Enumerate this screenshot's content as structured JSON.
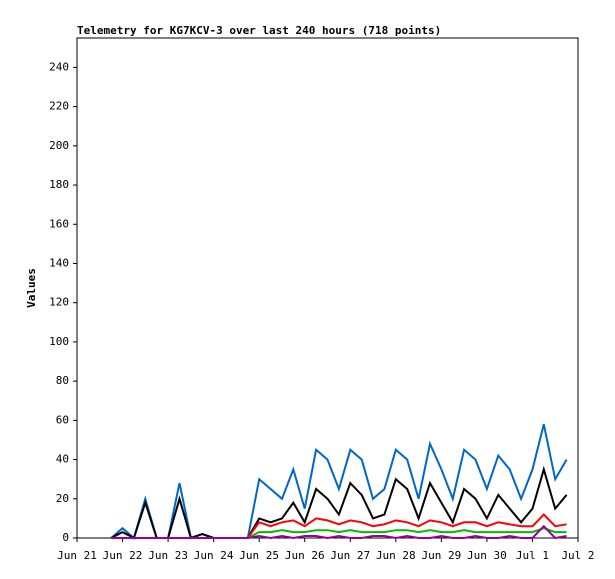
{
  "chart_data": {
    "type": "line",
    "title": "Telemetry for KG7KCV-3 over last 240 hours (718 points)",
    "y_label": "Values",
    "x": [
      0.75,
      1.0,
      1.25,
      1.5,
      1.75,
      2.0,
      2.25,
      2.5,
      2.75,
      3.0,
      3.25,
      3.5,
      3.75,
      4.0,
      4.25,
      4.5,
      4.75,
      5.0,
      5.25,
      5.5,
      5.75,
      6.0,
      6.25,
      6.5,
      6.75,
      7.0,
      7.25,
      7.5,
      7.75,
      8.0,
      8.25,
      8.5,
      8.75,
      9.0,
      9.25,
      9.5,
      9.75,
      10.0,
      10.25,
      10.5,
      10.75
    ],
    "series": [
      {
        "color": "#0066cc",
        "values": [
          0,
          5,
          0,
          20,
          0,
          0,
          28,
          0,
          2,
          0,
          0,
          0,
          0,
          30,
          25,
          20,
          35,
          15,
          45,
          40,
          25,
          45,
          40,
          20,
          25,
          45,
          40,
          20,
          48,
          35,
          20,
          45,
          40,
          25,
          42,
          35,
          20,
          35,
          58,
          30,
          40
        ]
      },
      {
        "color": "#000000",
        "values": [
          0,
          3,
          0,
          18,
          0,
          0,
          20,
          0,
          2,
          0,
          0,
          0,
          0,
          10,
          8,
          10,
          18,
          8,
          25,
          20,
          12,
          28,
          22,
          10,
          12,
          30,
          25,
          10,
          28,
          18,
          8,
          25,
          20,
          10,
          22,
          15,
          8,
          15,
          35,
          15,
          22
        ]
      },
      {
        "color": "#ff0000",
        "values": [
          0,
          0,
          0,
          0,
          0,
          0,
          0,
          0,
          0,
          0,
          0,
          0,
          0,
          8,
          6,
          8,
          9,
          6,
          10,
          9,
          7,
          9,
          8,
          6,
          7,
          9,
          8,
          6,
          9,
          8,
          6,
          8,
          8,
          6,
          8,
          7,
          6,
          6,
          12,
          6,
          7
        ]
      },
      {
        "color": "#00bb00",
        "values": [
          0,
          0,
          0,
          0,
          0,
          0,
          0,
          0,
          0,
          0,
          0,
          0,
          0,
          3,
          3,
          4,
          3,
          3,
          4,
          4,
          3,
          4,
          3,
          3,
          3,
          4,
          4,
          3,
          4,
          3,
          3,
          4,
          3,
          3,
          3,
          3,
          3,
          3,
          5,
          3,
          3
        ]
      },
      {
        "color": "#990099",
        "values": [
          0,
          0,
          0,
          0,
          0,
          0,
          0,
          0,
          0,
          0,
          0,
          0,
          0,
          1,
          0,
          1,
          0,
          1,
          1,
          0,
          1,
          0,
          0,
          1,
          1,
          0,
          1,
          0,
          0,
          1,
          0,
          0,
          1,
          0,
          0,
          1,
          0,
          0,
          6,
          0,
          1
        ]
      }
    ],
    "xlim": [
      0,
      11
    ],
    "xticks": [
      {
        "value": 0,
        "label": "Jun 21"
      },
      {
        "value": 1,
        "label": "Jun 22"
      },
      {
        "value": 2,
        "label": "Jun 23"
      },
      {
        "value": 3,
        "label": "Jun 24"
      },
      {
        "value": 4,
        "label": "Jun 25"
      },
      {
        "value": 5,
        "label": "Jun 26"
      },
      {
        "value": 6,
        "label": "Jun 27"
      },
      {
        "value": 7,
        "label": "Jun 28"
      },
      {
        "value": 8,
        "label": "Jun 29"
      },
      {
        "value": 9,
        "label": "Jun 30"
      },
      {
        "value": 10,
        "label": "Jul 1"
      },
      {
        "value": 11,
        "label": "Jul 2"
      }
    ],
    "ylim": [
      0,
      255
    ],
    "yticks": [
      0,
      20,
      40,
      60,
      80,
      100,
      120,
      140,
      160,
      180,
      200,
      220,
      240
    ]
  }
}
